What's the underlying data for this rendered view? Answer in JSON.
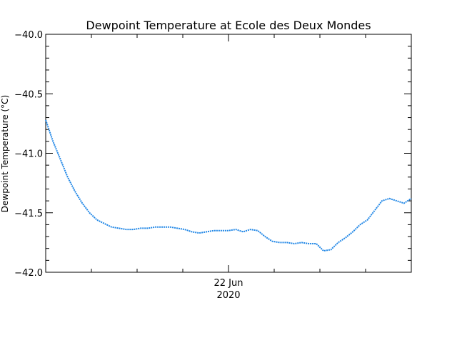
{
  "chart_data": {
    "type": "line",
    "title": "Dewpoint Temperature at Ecole des Deux Mondes",
    "ylabel": "Dewpoint Temperature (°C)",
    "xlabel": "",
    "ylim": [
      -42.0,
      -40.0
    ],
    "xlim": [
      0,
      1
    ],
    "y_ticks": [
      "-40.0",
      "-40.5",
      "-41.0",
      "-41.5",
      "-42.0"
    ],
    "y_tick_values": [
      -40.0,
      -40.5,
      -41.0,
      -41.5,
      -42.0
    ],
    "x_tick_label_line1": "22 Jun",
    "x_tick_label_line2": "2020",
    "x_tick_position": 0.5,
    "grid": false,
    "series": [
      {
        "color": "#1f86e6",
        "x": [
          0.0,
          0.02,
          0.04,
          0.06,
          0.08,
          0.1,
          0.12,
          0.14,
          0.16,
          0.18,
          0.2,
          0.22,
          0.24,
          0.26,
          0.28,
          0.3,
          0.32,
          0.34,
          0.36,
          0.38,
          0.4,
          0.42,
          0.44,
          0.46,
          0.48,
          0.5,
          0.52,
          0.54,
          0.56,
          0.58,
          0.6,
          0.62,
          0.64,
          0.66,
          0.68,
          0.7,
          0.72,
          0.74,
          0.76,
          0.78,
          0.8,
          0.82,
          0.84,
          0.86,
          0.88,
          0.9,
          0.92,
          0.94,
          0.96,
          0.98,
          1.0
        ],
        "y": [
          -40.72,
          -40.9,
          -41.05,
          -41.2,
          -41.32,
          -41.42,
          -41.5,
          -41.56,
          -41.59,
          -41.62,
          -41.63,
          -41.64,
          -41.64,
          -41.63,
          -41.63,
          -41.62,
          -41.62,
          -41.62,
          -41.63,
          -41.64,
          -41.66,
          -41.67,
          -41.66,
          -41.65,
          -41.65,
          -41.65,
          -41.64,
          -41.66,
          -41.64,
          -41.65,
          -41.7,
          -41.74,
          -41.75,
          -41.75,
          -41.76,
          -41.75,
          -41.76,
          -41.76,
          -41.82,
          -41.81,
          -41.75,
          -41.71,
          -41.66,
          -41.6,
          -41.56,
          -41.48,
          -41.4,
          -41.38,
          -41.4,
          -41.42,
          -41.38
        ]
      }
    ]
  }
}
